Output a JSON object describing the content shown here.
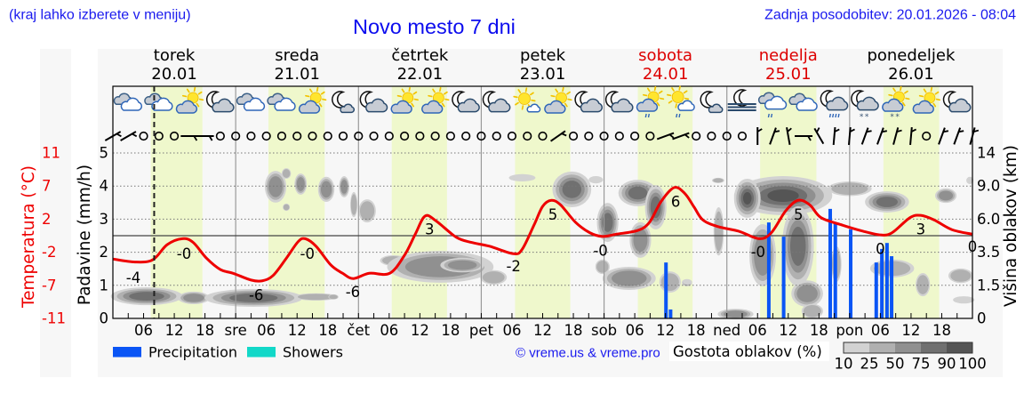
{
  "header": {
    "menu_hint": "(kraj lahko izberete v meniju)",
    "title": "Novo mesto 7 dni",
    "last_update": "Zadnja posodobitev: 20.01.2026 - 08:04"
  },
  "axes": {
    "temperature_label": "Temperatura (°C)",
    "precip_label": "Padavine (mm/h)",
    "cloud_height_label": "Višina oblakov (km)"
  },
  "legend": {
    "precipitation": "Precipitation",
    "showers": "Showers",
    "copyright": "© vreme.us & vreme.pro",
    "density_title": "Gostota oblakov (%)",
    "density_levels": [
      "10",
      "25",
      "50",
      "75",
      "90",
      "100"
    ]
  },
  "colors": {
    "accent_blue": "#1a1aee",
    "weekend_red": "#dd0000",
    "temperature_line": "#ee0000",
    "precipitation": "#0a55f5",
    "showers": "#12d8c8",
    "daylight": "#eff8cc",
    "panel": "#f7f7f7",
    "density": [
      "#d2d2d2",
      "#b0b0b0",
      "#909090",
      "#707070",
      "#555555"
    ]
  },
  "chart_data": {
    "type": "line",
    "title": "Novo mesto 7 dni",
    "hours_total": 168,
    "days": [
      {
        "name": "torek",
        "date": "20.01",
        "weekend": false
      },
      {
        "name": "sreda",
        "date": "21.01",
        "weekend": false
      },
      {
        "name": "četrtek",
        "date": "22.01",
        "weekend": false
      },
      {
        "name": "petek",
        "date": "23.01",
        "weekend": false
      },
      {
        "name": "sobota",
        "date": "24.01",
        "weekend": true
      },
      {
        "name": "nedelja",
        "date": "25.01",
        "weekend": true
      },
      {
        "name": "ponedeljek",
        "date": "26.01",
        "weekend": false
      }
    ],
    "x_ticks": {
      "start_hour": 6,
      "step_hours": 6,
      "labels": [
        "06",
        "12",
        "18",
        "sre",
        "06",
        "12",
        "18",
        "čet",
        "06",
        "12",
        "18",
        "pet",
        "06",
        "12",
        "18",
        "sob",
        "06",
        "12",
        "18",
        "ned",
        "06",
        "12",
        "18",
        "pon",
        "06",
        "12",
        "18"
      ]
    },
    "y_left": {
      "label": "Padavine (mm/h)",
      "min": 0,
      "max": 5,
      "ticks": [
        "0",
        "1",
        "2",
        "3",
        "4",
        "5"
      ]
    },
    "y_temp": {
      "label": "Temperatura (°C)",
      "min": -11,
      "max": 11,
      "ticks": [
        "-11",
        "-7",
        "-2",
        "2",
        "7",
        "11"
      ]
    },
    "y_right": {
      "label": "Višina oblakov (km)",
      "ticks": [
        "0",
        "1.5",
        "3.5",
        "6.0",
        "9.0",
        "14"
      ]
    },
    "grid": true,
    "now_hour": 8.07,
    "daylight_hours": [
      [
        7.4,
        17.5
      ],
      [
        30.4,
        41.4
      ],
      [
        54.5,
        65.3
      ],
      [
        78.6,
        89.4
      ],
      [
        102.6,
        113.3
      ],
      [
        126.5,
        137.5
      ],
      [
        150.6,
        161.5
      ]
    ],
    "series": [
      {
        "name": "Temperatura (°C)",
        "type": "line",
        "points": [
          [
            0,
            -3.1
          ],
          [
            4.3,
            -3.5
          ],
          [
            7.8,
            -3.2
          ],
          [
            10.6,
            -1.2
          ],
          [
            13.6,
            -0.4
          ],
          [
            15.7,
            -0.9
          ],
          [
            18.3,
            -3.0
          ],
          [
            21.0,
            -4.5
          ],
          [
            23.5,
            -5.0
          ],
          [
            27.0,
            -5.9
          ],
          [
            29.2,
            -6.0
          ],
          [
            31.3,
            -5.3
          ],
          [
            33.9,
            -3.0
          ],
          [
            36.2,
            -0.8
          ],
          [
            37.6,
            -0.4
          ],
          [
            39.7,
            -1.4
          ],
          [
            42.6,
            -3.9
          ],
          [
            44.9,
            -5.0
          ],
          [
            47.0,
            -5.7
          ],
          [
            50.1,
            -5.0
          ],
          [
            54.1,
            -5.0
          ],
          [
            57.0,
            -2.6
          ],
          [
            59.1,
            0.2
          ],
          [
            61.0,
            2.6
          ],
          [
            63.1,
            2.0
          ],
          [
            67.1,
            -0.2
          ],
          [
            70.1,
            -0.9
          ],
          [
            73.6,
            -1.4
          ],
          [
            78.3,
            -2.4
          ],
          [
            80.0,
            -1.8
          ],
          [
            82.3,
            1.4
          ],
          [
            84.0,
            3.9
          ],
          [
            85.7,
            4.7
          ],
          [
            87.5,
            4.1
          ],
          [
            90.4,
            1.8
          ],
          [
            93.2,
            0.4
          ],
          [
            95.7,
            -0.1
          ],
          [
            98.4,
            0.2
          ],
          [
            102.6,
            0.7
          ],
          [
            104.9,
            1.8
          ],
          [
            107.1,
            4.5
          ],
          [
            109.7,
            6.4
          ],
          [
            111.8,
            5.6
          ],
          [
            113.6,
            3.8
          ],
          [
            115.3,
            2.1
          ],
          [
            118.3,
            1.2
          ],
          [
            122.3,
            0.6
          ],
          [
            126.3,
            -0.4
          ],
          [
            128.7,
            0.4
          ],
          [
            131.5,
            3.3
          ],
          [
            133.9,
            4.7
          ],
          [
            136.2,
            4.1
          ],
          [
            138.4,
            2.4
          ],
          [
            142.6,
            1.4
          ],
          [
            146.6,
            0.6
          ],
          [
            150.1,
            0.1
          ],
          [
            152.3,
            0.4
          ],
          [
            155.8,
            2.4
          ],
          [
            157.9,
            2.7
          ],
          [
            160.5,
            2.1
          ],
          [
            164.0,
            0.8
          ],
          [
            168.0,
            0.2
          ]
        ]
      },
      {
        "name": "Precipitation",
        "type": "bar",
        "points": [
          [
            108.1,
            1.69
          ],
          [
            109.0,
            0.27
          ],
          [
            128.2,
            2.9
          ],
          [
            131.1,
            2.47
          ],
          [
            140.2,
            3.31
          ],
          [
            141.2,
            2.9
          ],
          [
            144.2,
            2.69
          ],
          [
            149.2,
            1.69
          ],
          [
            150.3,
            2.1
          ],
          [
            151.3,
            2.28
          ],
          [
            152.2,
            1.88
          ]
        ]
      },
      {
        "name": "Showers",
        "type": "bar",
        "points": []
      }
    ],
    "temperature_labels": [
      {
        "h": 4.0,
        "t": -5.6,
        "text": "-4"
      },
      {
        "h": 13.9,
        "t": -2.4,
        "text": "-0"
      },
      {
        "h": 28.0,
        "t": -7.9,
        "text": "-6"
      },
      {
        "h": 38.0,
        "t": -2.4,
        "text": "-0"
      },
      {
        "h": 46.9,
        "t": -7.5,
        "text": "-6"
      },
      {
        "h": 61.9,
        "t": 0.8,
        "text": "3"
      },
      {
        "h": 78.3,
        "t": -4.1,
        "text": "-2"
      },
      {
        "h": 86.0,
        "t": 2.8,
        "text": "5"
      },
      {
        "h": 95.3,
        "t": -2.0,
        "text": "-0"
      },
      {
        "h": 110.0,
        "t": 4.5,
        "text": "6"
      },
      {
        "h": 126.1,
        "t": -2.2,
        "text": "-0"
      },
      {
        "h": 134.0,
        "t": 2.8,
        "text": "5"
      },
      {
        "h": 150.0,
        "t": -1.8,
        "text": "0"
      },
      {
        "h": 157.9,
        "t": 0.8,
        "text": "3"
      },
      {
        "h": 168.0,
        "t": -1.5,
        "text": "0"
      }
    ],
    "weather_icons": [
      "cloudy",
      "cloudy",
      "partly-cloudy-day",
      "partly-cloudy-night",
      "cloudy",
      "cloudy",
      "partly-cloudy-day",
      "mostly-clear-night",
      "partly-cloudy-night",
      "partly-cloudy-day",
      "partly-cloudy-day",
      "partly-cloudy-night",
      "partly-cloudy-night",
      "mostly-sunny",
      "partly-cloudy-day",
      "partly-cloudy-night",
      "partly-cloudy-night",
      "partly-cloudy-day-rain",
      "mostly-sunny-rain",
      "mostly-clear-night",
      "night-fog",
      "cloudy-rain",
      "cloudy",
      "partly-cloudy-night-heavy-rain",
      "partly-cloudy-night-snow",
      "partly-cloudy-day-snow",
      "partly-cloudy-day",
      "partly-cloudy-night"
    ],
    "wind": {
      "step_hours": 3,
      "barbs": [
        {
          "rot": 60
        },
        {
          "rot": 60
        },
        {
          "calm": true
        },
        {
          "calm": true
        },
        {
          "calm": true
        },
        {
          "rot": 90
        },
        {
          "rot": 90
        },
        {
          "calm": true
        },
        {
          "calm": true
        },
        {
          "calm": true
        },
        {
          "calm": true
        },
        {
          "calm": true
        },
        {
          "calm": true
        },
        {
          "calm": true
        },
        {
          "calm": true
        },
        {
          "calm": true
        },
        {
          "calm": true
        },
        {
          "calm": true
        },
        {
          "calm": true
        },
        {
          "calm": true
        },
        {
          "calm": true
        },
        {
          "calm": true
        },
        {
          "calm": true
        },
        {
          "calm": true
        },
        {
          "calm": true
        },
        {
          "calm": true
        },
        {
          "calm": true
        },
        {
          "calm": true
        },
        {
          "calm": true
        },
        {
          "rot": 55
        },
        {
          "calm": true
        },
        {
          "calm": true
        },
        {
          "calm": true
        },
        {
          "calm": true
        },
        {
          "calm": true
        },
        {
          "calm": true
        },
        {
          "rot": 70
        },
        {
          "rot": 70
        },
        {
          "calm": true
        },
        {
          "calm": true
        },
        {
          "calm": true
        },
        {
          "calm": true
        },
        {
          "rot": 0
        },
        {
          "rot": 20
        },
        {
          "rot": -10
        },
        {
          "rot": 90
        },
        {
          "rot": -30
        },
        {
          "rot": 5
        },
        {
          "rot": 5
        },
        {
          "rot": 20
        },
        {
          "rot": 20
        },
        {
          "rot": 15
        },
        {
          "rot": 5
        },
        {
          "calm": true
        },
        {
          "rot": 20
        },
        {
          "rot": 20
        },
        {
          "rot": 15
        }
      ]
    },
    "cloud_density": {
      "fields": [
        "hour",
        "axis_mm",
        "radius_hours",
        "radius_mm",
        "density_pct"
      ],
      "blobs": [
        [
          6.6,
          0.67,
          7.0,
          0.27,
          80
        ],
        [
          15.8,
          0.62,
          3.1,
          0.19,
          60
        ],
        [
          27.5,
          0.62,
          9.6,
          0.27,
          85
        ],
        [
          39.7,
          0.65,
          4.3,
          0.11,
          25
        ],
        [
          43.1,
          0.65,
          1.0,
          0.08,
          30
        ],
        [
          31.8,
          3.98,
          2.1,
          0.48,
          70
        ],
        [
          33.9,
          4.38,
          0.9,
          0.16,
          40
        ],
        [
          33.9,
          3.36,
          0.7,
          0.11,
          30
        ],
        [
          36.7,
          4.06,
          1.2,
          0.32,
          65
        ],
        [
          41.7,
          3.9,
          1.6,
          0.38,
          70
        ],
        [
          45.2,
          3.98,
          1.0,
          0.32,
          55
        ],
        [
          47.1,
          3.44,
          0.7,
          0.38,
          40
        ],
        [
          49.7,
          3.25,
          1.7,
          0.35,
          40
        ],
        [
          54.8,
          1.75,
          2.6,
          0.16,
          40
        ],
        [
          64.0,
          1.56,
          10.4,
          0.48,
          55
        ],
        [
          68.3,
          1.61,
          4.3,
          0.22,
          70
        ],
        [
          74.4,
          1.24,
          2.6,
          0.22,
          30
        ],
        [
          80.0,
          4.25,
          2.6,
          0.11,
          20
        ],
        [
          89.7,
          3.9,
          3.8,
          0.54,
          85
        ],
        [
          94.4,
          4.19,
          1.4,
          0.11,
          20
        ],
        [
          96.7,
          2.9,
          2.1,
          0.59,
          75
        ],
        [
          95.7,
          1.56,
          1.4,
          0.22,
          30
        ],
        [
          102.6,
          3.79,
          3.8,
          0.4,
          80
        ],
        [
          106.1,
          3.36,
          2.1,
          0.67,
          80
        ],
        [
          103.1,
          2.37,
          2.1,
          0.54,
          55
        ],
        [
          100.9,
          1.21,
          5.2,
          0.35,
          50
        ],
        [
          108.9,
          1.1,
          2.1,
          0.32,
          35
        ],
        [
          112.2,
          1.08,
          1.0,
          0.11,
          25
        ],
        [
          118.4,
          2.63,
          1.0,
          0.73,
          45
        ],
        [
          118.3,
          4.17,
          1.2,
          0.08,
          25
        ],
        [
          131.0,
          3.71,
          9.6,
          0.59,
          95
        ],
        [
          124.0,
          3.63,
          2.6,
          0.59,
          90
        ],
        [
          133.9,
          2.18,
          3.1,
          1.21,
          85
        ],
        [
          127.0,
          1.91,
          2.6,
          0.94,
          65
        ],
        [
          135.7,
          0.75,
          3.1,
          0.4,
          55
        ],
        [
          121.7,
          0.13,
          3.5,
          0.16,
          50
        ],
        [
          136.7,
          0.22,
          2.1,
          0.22,
          45
        ],
        [
          144.0,
          3.92,
          4.3,
          0.22,
          35
        ],
        [
          141.4,
          1.64,
          1.0,
          0.54,
          30
        ],
        [
          151.3,
          3.52,
          4.3,
          0.32,
          85
        ],
        [
          162.8,
          3.71,
          2.1,
          0.22,
          55
        ],
        [
          152.3,
          1.51,
          4.3,
          0.27,
          35
        ],
        [
          158.3,
          1.02,
          1.4,
          0.35,
          30
        ],
        [
          165.7,
          1.29,
          2.4,
          0.22,
          30
        ],
        [
          166.3,
          0.56,
          2.1,
          0.11,
          20
        ],
        [
          112.3,
          1.1,
          0.9,
          0.08,
          20
        ],
        [
          167.5,
          4.17,
          0.7,
          0.11,
          20
        ]
      ]
    }
  }
}
